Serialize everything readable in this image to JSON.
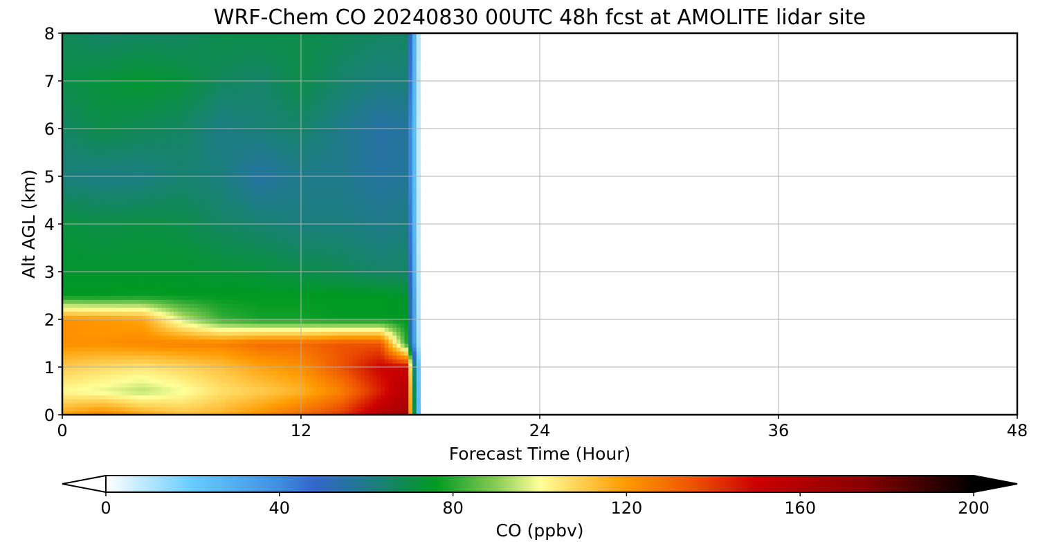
{
  "chart_data": {
    "type": "heatmap",
    "title": "WRF-Chem CO  20240830 00UTC 48h fcst at AMOLITE lidar site",
    "xlabel": "Forecast Time (Hour)",
    "ylabel": "Alt AGL (km)",
    "xlim": [
      0,
      48
    ],
    "ylim": [
      0,
      8
    ],
    "xticks": [
      0,
      12,
      24,
      36,
      48
    ],
    "yticks": [
      0,
      1,
      2,
      3,
      4,
      5,
      6,
      7,
      8
    ],
    "grid": true,
    "data_extent_hours": [
      0,
      18
    ],
    "x": [
      0,
      2,
      4,
      6,
      8,
      10,
      12,
      14,
      16,
      17.3
    ],
    "y": [
      0,
      0.5,
      1,
      1.5,
      2,
      2.5,
      3,
      4,
      5,
      6,
      7,
      8
    ],
    "z": [
      [
        118,
        125,
        118,
        112,
        115,
        122,
        130,
        140,
        158,
        165
      ],
      [
        101,
        98,
        94,
        99,
        106,
        110,
        115,
        125,
        145,
        160
      ],
      [
        110,
        107,
        105,
        108,
        112,
        118,
        122,
        135,
        150,
        150
      ],
      [
        122,
        122,
        124,
        125,
        125,
        130,
        130,
        135,
        135,
        80
      ],
      [
        122,
        120,
        118,
        96,
        82,
        78,
        78,
        76,
        76,
        76
      ],
      [
        76,
        76,
        77,
        76,
        76,
        76,
        76,
        76,
        76,
        74
      ],
      [
        74,
        74,
        74,
        74,
        73,
        72,
        70,
        68,
        65,
        66
      ],
      [
        72,
        70,
        71,
        70,
        66,
        64,
        62,
        62,
        60,
        62
      ],
      [
        62,
        61,
        61,
        64,
        62,
        56,
        60,
        60,
        56,
        58
      ],
      [
        66,
        70,
        68,
        66,
        61,
        63,
        65,
        60,
        55,
        57
      ],
      [
        70,
        72,
        74,
        72,
        67,
        65,
        70,
        65,
        62,
        63
      ],
      [
        68,
        65,
        66,
        66,
        70,
        70,
        70,
        68,
        66,
        66
      ]
    ],
    "colorbar": {
      "label": "CO  (ppbv)",
      "min": 0,
      "max": 200,
      "ticks": [
        0,
        40,
        80,
        120,
        160,
        200
      ],
      "extend": "both",
      "stops": [
        {
          "v": 0,
          "color": "#ffffff"
        },
        {
          "v": 20,
          "color": "#66ccff"
        },
        {
          "v": 40,
          "color": "#3f8ee0"
        },
        {
          "v": 48,
          "color": "#3366cc"
        },
        {
          "v": 60,
          "color": "#1f7a8a"
        },
        {
          "v": 76,
          "color": "#009922"
        },
        {
          "v": 90,
          "color": "#88cc55"
        },
        {
          "v": 100,
          "color": "#ffff99"
        },
        {
          "v": 120,
          "color": "#ff9900"
        },
        {
          "v": 135,
          "color": "#ee5500"
        },
        {
          "v": 150,
          "color": "#cc0000"
        },
        {
          "v": 175,
          "color": "#880000"
        },
        {
          "v": 200,
          "color": "#000000"
        }
      ]
    }
  }
}
